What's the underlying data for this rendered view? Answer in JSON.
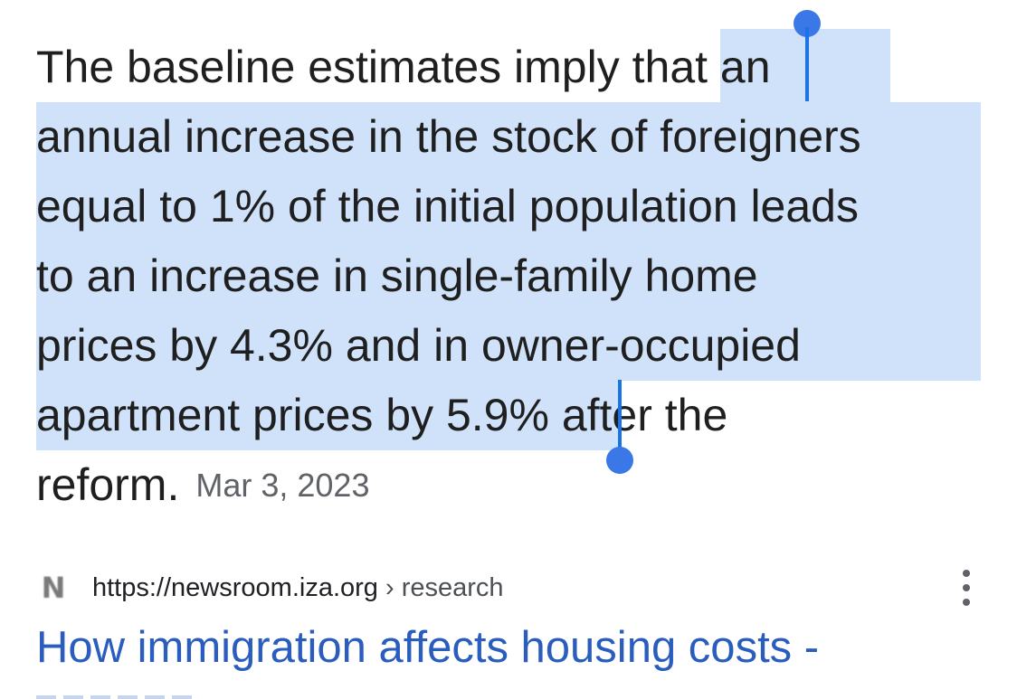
{
  "snippet": {
    "pre_selection": "The baseline estimates imply that ",
    "selected_lines": [
      "an",
      "annual increase in the stock of foreigners",
      "equal to 1% of the initial population leads",
      "to an increase in single-family home",
      "prices by 4.3% and in owner-occupied",
      "apartment prices by 5.9%"
    ],
    "post_selection": " after the",
    "last_line": "reform.",
    "date": "Mar 3, 2023"
  },
  "selection": {
    "highlight_color": "#cfe2fa",
    "handle_color": "#1a73e8"
  },
  "source": {
    "favicon_letter": "N",
    "url_base": "https://newsroom.iza.org",
    "url_path": " › research",
    "more_icon": "more-vert-icon"
  },
  "result": {
    "title": "How immigration affects housing costs -"
  }
}
